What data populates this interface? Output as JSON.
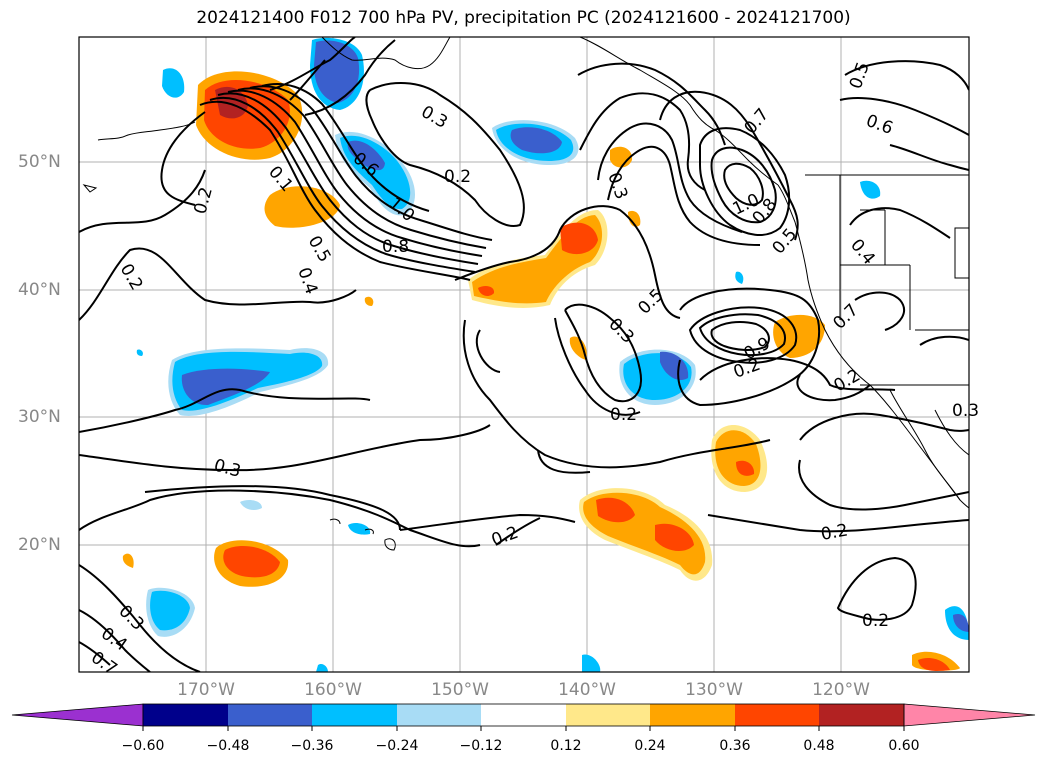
{
  "title": "2024121400 F012 700 hPa PV, precipitation PC (2024121600 - 2024121700)",
  "map": {
    "lat_labels": [
      "50°N",
      "40°N",
      "30°N",
      "20°N"
    ],
    "lon_labels": [
      "170°W",
      "160°W",
      "150°W",
      "140°W",
      "130°W",
      "120°W"
    ],
    "grid": true,
    "contour_labels": [
      "0.3",
      "0.2",
      "0.6",
      "1.0",
      "0.2",
      "0.5",
      "0.4",
      "0.8",
      "0.2",
      "0.3",
      "0.5",
      "0.3",
      "0.2",
      "0.7",
      "1.0",
      "0.8",
      "0.5",
      "0.6",
      "0.5",
      "0.4",
      "0.7",
      "0.9",
      "0.2",
      "0.2",
      "0.3",
      "0.2",
      "0.2",
      "0.2",
      "0.3",
      "0.4",
      "0.7",
      "0.1",
      "0.3"
    ]
  },
  "colorbar": {
    "ticks": [
      "−0.60",
      "−0.48",
      "−0.36",
      "−0.24",
      "−0.12",
      "0.12",
      "0.24",
      "0.36",
      "0.48",
      "0.60"
    ],
    "colors": {
      "neg_extend": "#9b30d0",
      "neg_060": "#00008b",
      "neg_048": "#3a5fcd",
      "neg_036": "#00bfff",
      "neg_024": "#a8dcf5",
      "neutral": "#ffffff",
      "pos_012": "#ffe88a",
      "pos_024": "#ffa500",
      "pos_036": "#ff4500",
      "pos_048": "#b22222",
      "pos_extend": "#ff85a8"
    }
  }
}
